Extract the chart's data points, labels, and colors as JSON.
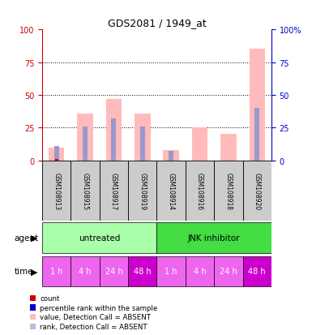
{
  "title": "GDS2081 / 1949_at",
  "samples": [
    "GSM108913",
    "GSM108915",
    "GSM108917",
    "GSM108919",
    "GSM108914",
    "GSM108916",
    "GSM108918",
    "GSM108920"
  ],
  "pink_bars": [
    10,
    36,
    47,
    36,
    8,
    25,
    20,
    85
  ],
  "blue_bars": [
    11,
    26,
    32,
    26,
    7,
    0,
    0,
    40
  ],
  "red_counts": [
    1,
    0,
    0,
    0,
    0,
    0,
    0,
    0
  ],
  "agent_labels": [
    "untreated",
    "JNK inhibitor"
  ],
  "agent_colors": [
    "#aaffaa",
    "#44dd44"
  ],
  "time_labels": [
    "1 h",
    "4 h",
    "24 h",
    "48 h",
    "1 h",
    "4 h",
    "24 h",
    "48 h"
  ],
  "time_darker": [
    false,
    false,
    false,
    true,
    false,
    false,
    false,
    true
  ],
  "time_color_light": "#ee66ee",
  "time_color_dark": "#cc00cc",
  "ylim": [
    0,
    100
  ],
  "yticks": [
    0,
    25,
    50,
    75,
    100
  ],
  "left_axis_color": "#cc0000",
  "right_axis_color": "#0000cc",
  "bar_pink": "#ffbbbb",
  "bar_blue": "#9999cc",
  "bar_red": "#cc0000",
  "colors_leg": [
    "#cc0000",
    "#0000cc",
    "#ffbbbb",
    "#bbbbdd"
  ],
  "labels_leg": [
    "count",
    "percentile rank within the sample",
    "value, Detection Call = ABSENT",
    "rank, Detection Call = ABSENT"
  ]
}
